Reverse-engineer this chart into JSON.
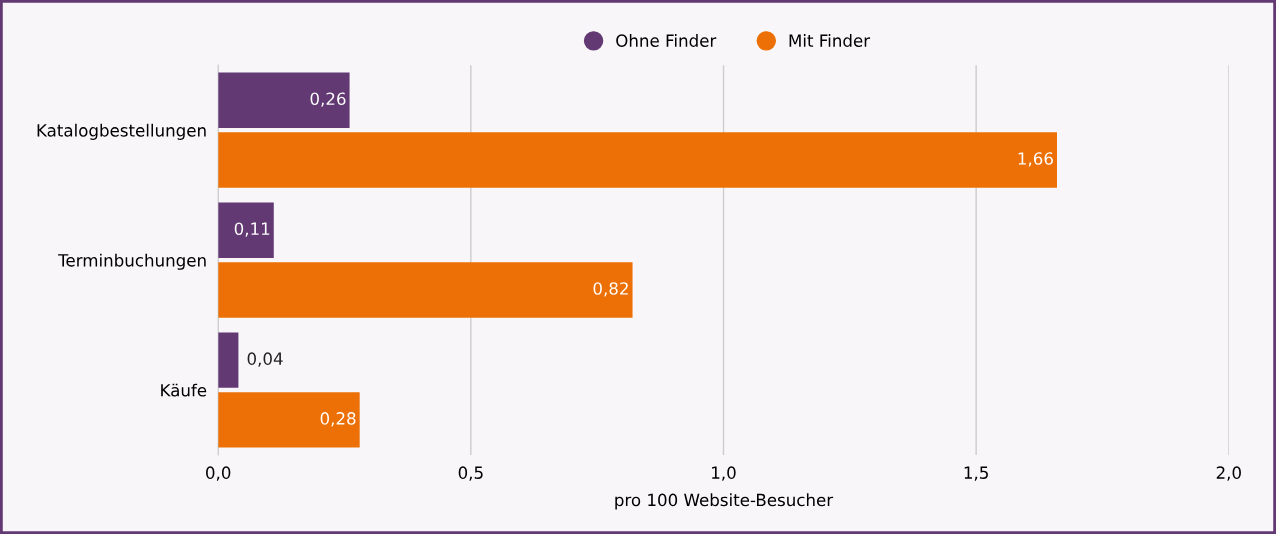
{
  "chart_data": {
    "type": "bar",
    "orientation": "horizontal",
    "categories": [
      "Katalogbestellungen",
      "Terminbuchungen",
      "Käufe"
    ],
    "series": [
      {
        "name": "Ohne Finder",
        "color": "#633974",
        "values": [
          0.26,
          0.11,
          0.04
        ],
        "value_labels": [
          "0,26",
          "0,11",
          "0,04"
        ]
      },
      {
        "name": "Mit Finder",
        "color": "#ec7005",
        "values": [
          1.66,
          0.82,
          0.28
        ],
        "value_labels": [
          "1,66",
          "0,82",
          "0,28"
        ]
      }
    ],
    "xlabel": "pro 100 Website-Besucher",
    "xlim": [
      0,
      2
    ],
    "xticks": [
      {
        "value": 0,
        "label": "0,0"
      },
      {
        "value": 0.5,
        "label": "0,5"
      },
      {
        "value": 1,
        "label": "1,0"
      },
      {
        "value": 1.5,
        "label": "1,5"
      },
      {
        "value": 2,
        "label": "2,0"
      }
    ],
    "grid": "x",
    "legend": "top"
  }
}
